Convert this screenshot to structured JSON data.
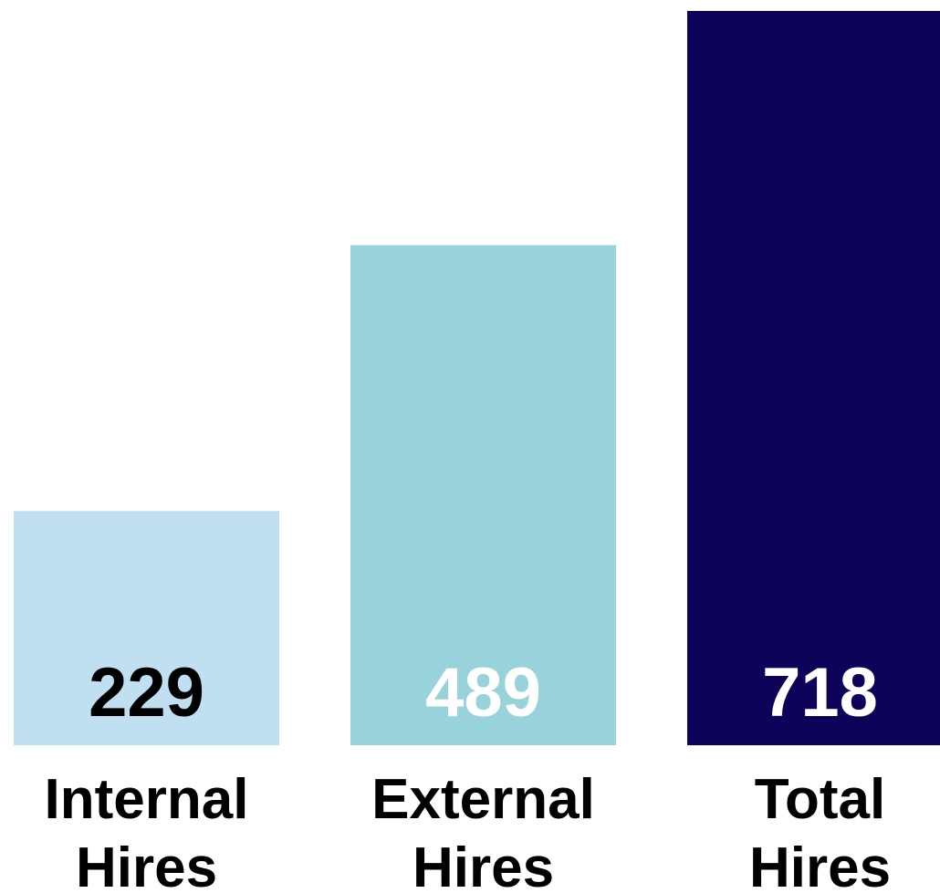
{
  "chart_data": {
    "type": "bar",
    "categories": [
      [
        "Internal",
        "Hires"
      ],
      [
        "External",
        "Hires"
      ],
      [
        "Total",
        "Hires"
      ]
    ],
    "values": [
      229,
      489,
      718
    ],
    "value_labels": [
      "229",
      "489",
      "718"
    ],
    "ylim": [
      0,
      718
    ],
    "grid": false,
    "title": "",
    "xlabel": "",
    "ylabel": "",
    "colors": {
      "bars": [
        "#c0dff0",
        "#98d2db",
        "#0d0359"
      ],
      "value_text": [
        "#000000",
        "#ffffff",
        "#ffffff"
      ]
    }
  }
}
